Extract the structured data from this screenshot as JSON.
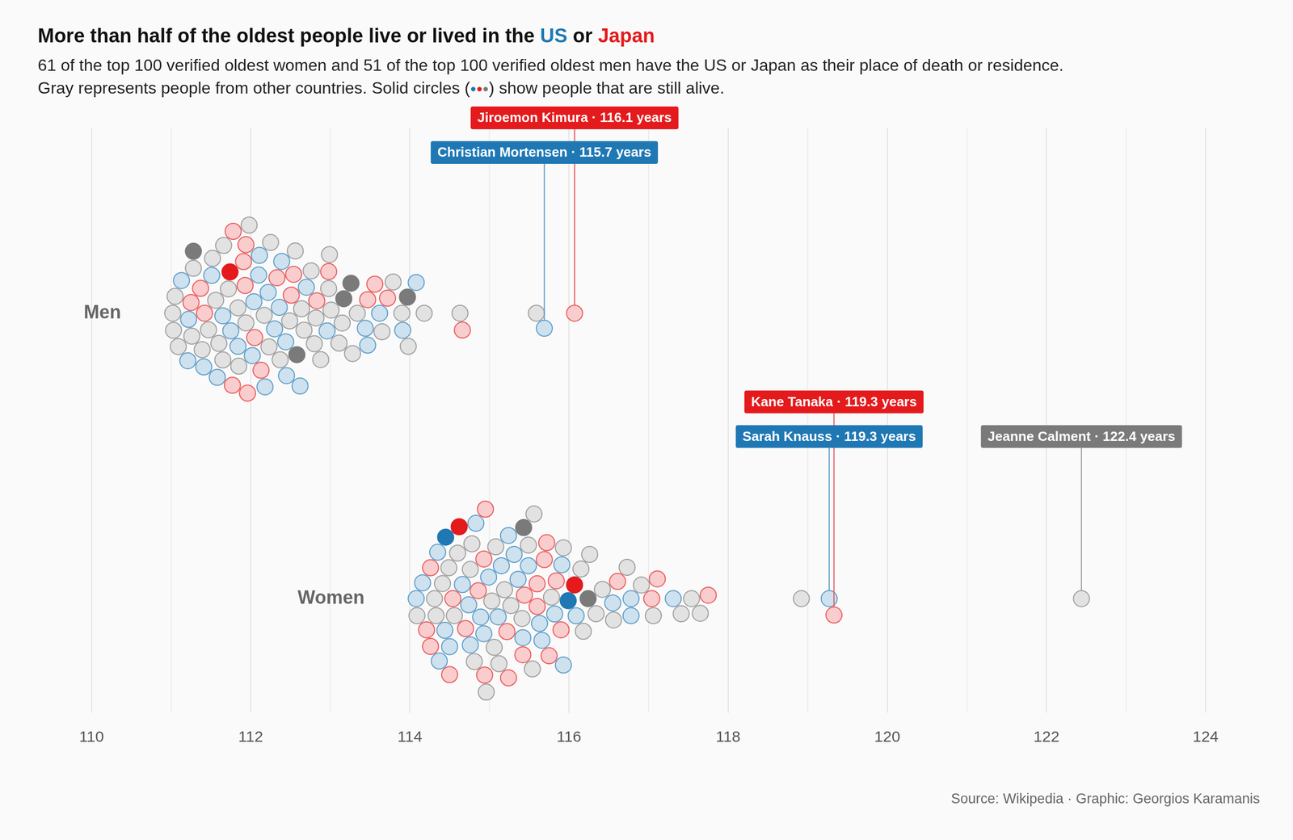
{
  "chart_data": {
    "type": "scatter",
    "title": "More than half of the oldest people live or lived in the US or Japan",
    "subtitle": [
      "61 of the top 100 verified oldest women and 51 of the top 100 verified oldest men have the US or Japan as their place of death or residence.",
      "Gray represents people from other countries. Solid circles (●●●) show people that are still alive."
    ],
    "source": "Source: Wikipedia · Graphic: Georgios Karamanis",
    "color": "#7a7a7a",
    "series": [
      {
        "name": "US",
        "color": "#1f78b4"
      },
      {
        "name": "Japan",
        "color": "#e41a1c"
      }
    ],
    "xlim": [
      110,
      124
    ],
    "xticks": [
      110,
      112,
      114,
      116,
      118,
      120,
      122,
      124
    ],
    "grid": true,
    "groups": [
      {
        "category": "Men",
        "values": [
          111.02,
          111.03,
          111.05,
          111.09,
          111.13,
          111.21,
          111.22,
          111.25,
          111.26,
          111.28,
          111.28,
          111.37,
          111.39,
          111.41,
          111.42,
          111.47,
          111.51,
          111.52,
          111.56,
          111.58,
          111.6,
          111.65,
          111.65,
          111.66,
          111.72,
          111.74,
          111.75,
          111.77,
          111.78,
          111.84,
          111.84,
          111.85,
          111.91,
          111.93,
          111.94,
          111.94,
          111.96,
          111.98,
          112.02,
          112.04,
          112.05,
          112.1,
          112.11,
          112.13,
          112.17,
          112.18,
          112.22,
          112.23,
          112.25,
          112.3,
          112.33,
          112.36,
          112.37,
          112.39,
          112.44,
          112.45,
          112.49,
          112.51,
          112.54,
          112.56,
          112.58,
          112.62,
          112.64,
          112.67,
          112.7,
          112.76,
          112.8,
          112.82,
          112.83,
          112.88,
          112.96,
          112.98,
          112.98,
          112.99,
          113.01,
          113.11,
          113.15,
          113.17,
          113.26,
          113.28,
          113.34,
          113.44,
          113.47,
          113.47,
          113.56,
          113.62,
          113.65,
          113.72,
          113.79,
          113.9,
          113.91,
          113.97,
          113.98,
          114.08,
          114.18,
          114.63,
          114.66,
          115.59,
          115.69,
          116.07
        ],
        "countries": [
          null,
          null,
          null,
          null,
          "US",
          "US",
          "US",
          "Japan",
          null,
          null,
          null,
          "Japan",
          null,
          "US",
          "Japan",
          null,
          "US",
          null,
          null,
          "US",
          null,
          "US",
          null,
          null,
          null,
          "Japan",
          "US",
          "Japan",
          "Japan",
          null,
          "US",
          null,
          "Japan",
          "Japan",
          null,
          "Japan",
          "Japan",
          null,
          "US",
          "US",
          "Japan",
          "US",
          "US",
          "Japan",
          null,
          "US",
          "US",
          null,
          null,
          "US",
          "Japan",
          "US",
          null,
          "US",
          "US",
          "US",
          null,
          "Japan",
          "Japan",
          null,
          null,
          "US",
          null,
          null,
          "US",
          null,
          null,
          null,
          "Japan",
          null,
          "US",
          null,
          "Japan",
          null,
          null,
          null,
          null,
          null,
          null,
          null,
          null,
          "US",
          "Japan",
          "US",
          "Japan",
          "US",
          null,
          "Japan",
          null,
          null,
          "US",
          null,
          null,
          "US",
          null,
          null,
          "Japan",
          null,
          "US",
          "Japan"
        ],
        "alive": [
          false,
          false,
          false,
          false,
          false,
          false,
          false,
          false,
          false,
          false,
          true,
          false,
          false,
          false,
          false,
          false,
          false,
          false,
          false,
          false,
          false,
          false,
          false,
          false,
          false,
          true,
          false,
          false,
          false,
          false,
          false,
          false,
          false,
          false,
          false,
          false,
          false,
          false,
          false,
          false,
          false,
          false,
          false,
          false,
          false,
          false,
          false,
          false,
          false,
          false,
          false,
          false,
          false,
          false,
          false,
          false,
          false,
          false,
          false,
          false,
          true,
          false,
          false,
          false,
          false,
          false,
          false,
          false,
          false,
          false,
          false,
          false,
          false,
          false,
          false,
          false,
          false,
          true,
          true,
          false,
          false,
          false,
          false,
          false,
          false,
          false,
          false,
          false,
          false,
          false,
          false,
          true,
          false,
          false,
          false,
          false,
          false,
          false,
          false,
          false
        ]
      },
      {
        "category": "Women",
        "values": [
          114.08,
          114.09,
          114.16,
          114.21,
          114.26,
          114.26,
          114.31,
          114.33,
          114.35,
          114.37,
          114.41,
          114.44,
          114.45,
          114.49,
          114.5,
          114.5,
          114.54,
          114.56,
          114.6,
          114.62,
          114.66,
          114.7,
          114.74,
          114.76,
          114.76,
          114.78,
          114.81,
          114.83,
          114.86,
          114.89,
          114.93,
          114.93,
          114.94,
          114.95,
          114.96,
          114.99,
          115.03,
          115.06,
          115.08,
          115.11,
          115.12,
          115.15,
          115.19,
          115.22,
          115.24,
          115.24,
          115.27,
          115.31,
          115.36,
          115.41,
          115.42,
          115.42,
          115.43,
          115.44,
          115.49,
          115.49,
          115.54,
          115.56,
          115.6,
          115.6,
          115.63,
          115.66,
          115.69,
          115.72,
          115.75,
          115.78,
          115.82,
          115.84,
          115.9,
          115.91,
          115.93,
          115.93,
          115.99,
          116.07,
          116.09,
          116.15,
          116.18,
          116.24,
          116.26,
          116.34,
          116.42,
          116.55,
          116.56,
          116.61,
          116.73,
          116.78,
          116.78,
          116.91,
          117.04,
          117.06,
          117.11,
          117.31,
          117.41,
          117.54,
          117.65,
          117.75,
          118.92,
          119.27,
          119.33,
          122.44
        ],
        "countries": [
          "US",
          null,
          "US",
          "Japan",
          "Japan",
          "Japan",
          null,
          null,
          "US",
          "US",
          null,
          "US",
          "US",
          null,
          "US",
          "Japan",
          "Japan",
          null,
          null,
          "Japan",
          "US",
          "Japan",
          "US",
          null,
          "US",
          null,
          null,
          "US",
          "Japan",
          "US",
          "US",
          "Japan",
          "Japan",
          "Japan",
          null,
          "US",
          null,
          null,
          null,
          "US",
          null,
          "US",
          null,
          "Japan",
          "US",
          "Japan",
          null,
          "US",
          "US",
          null,
          "US",
          "Japan",
          null,
          "Japan",
          "US",
          null,
          null,
          null,
          "Japan",
          "Japan",
          "US",
          "US",
          "Japan",
          "Japan",
          "Japan",
          null,
          "US",
          "Japan",
          "Japan",
          "US",
          null,
          "US",
          "US",
          "Japan",
          "US",
          null,
          null,
          null,
          null,
          null,
          null,
          "US",
          null,
          "Japan",
          null,
          "US",
          "US",
          null,
          "Japan",
          null,
          "Japan",
          "US",
          null,
          null,
          null,
          "Japan",
          null,
          "US",
          "Japan",
          null
        ],
        "alive": [
          false,
          false,
          false,
          false,
          false,
          false,
          false,
          false,
          false,
          false,
          false,
          false,
          true,
          false,
          false,
          false,
          false,
          false,
          false,
          true,
          false,
          false,
          false,
          false,
          false,
          false,
          false,
          false,
          false,
          false,
          false,
          false,
          false,
          false,
          false,
          false,
          false,
          false,
          false,
          false,
          false,
          false,
          false,
          false,
          false,
          false,
          false,
          false,
          false,
          false,
          false,
          false,
          true,
          false,
          false,
          false,
          false,
          false,
          false,
          false,
          false,
          false,
          false,
          false,
          false,
          false,
          false,
          false,
          false,
          false,
          false,
          false,
          true,
          true,
          false,
          false,
          false,
          true,
          false,
          false,
          false,
          false,
          false,
          false,
          false,
          false,
          false,
          false,
          false,
          false,
          false,
          false,
          false,
          false,
          false,
          false,
          false,
          false,
          false,
          false
        ]
      }
    ],
    "annotations": [
      {
        "category": "Men",
        "x": 115.69,
        "text": "Christian Mortensen · 115.7 years"
      },
      {
        "category": "Men",
        "x": 116.07,
        "text": "Jiroemon Kimura · 116.1 years"
      },
      {
        "category": "Women",
        "x": 119.27,
        "text": "Sarah Knauss · 119.3 years"
      },
      {
        "category": "Women",
        "x": 119.33,
        "text": "Kane Tanaka · 119.3 years"
      },
      {
        "category": "Women",
        "x": 122.44,
        "text": "Jeanne Calment · 122.4 years"
      }
    ]
  }
}
